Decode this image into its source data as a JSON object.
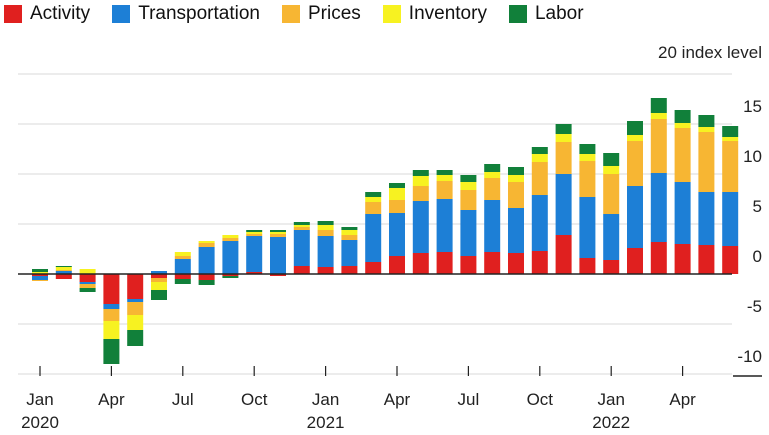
{
  "chart_data": {
    "type": "bar",
    "stacked": true,
    "unit_label": "20 index level",
    "ylim": [
      -10,
      20
    ],
    "y_ticks": [
      15,
      10,
      5,
      0,
      -5,
      -10
    ],
    "grid": true,
    "legend_position": "top-left",
    "x_tick_labels": [
      {
        "index": 0,
        "month": "Jan",
        "year": "2020"
      },
      {
        "index": 3,
        "month": "Apr",
        "year": ""
      },
      {
        "index": 6,
        "month": "Jul",
        "year": ""
      },
      {
        "index": 9,
        "month": "Oct",
        "year": ""
      },
      {
        "index": 12,
        "month": "Jan",
        "year": "2021"
      },
      {
        "index": 15,
        "month": "Apr",
        "year": ""
      },
      {
        "index": 18,
        "month": "Jul",
        "year": ""
      },
      {
        "index": 21,
        "month": "Oct",
        "year": ""
      },
      {
        "index": 24,
        "month": "Jan",
        "year": "2022"
      },
      {
        "index": 27,
        "month": "Apr",
        "year": ""
      }
    ],
    "series": [
      {
        "name": "Activity",
        "color": "#e0201f",
        "values": [
          -0.2,
          -0.5,
          -0.8,
          -3.0,
          -2.5,
          -0.4,
          -0.5,
          -0.6,
          -0.2,
          0.2,
          -0.2,
          0.8,
          0.7,
          0.8,
          1.2,
          1.8,
          2.1,
          2.2,
          1.8,
          2.2,
          2.1,
          2.3,
          3.9,
          1.6,
          1.4,
          2.6,
          3.2,
          3.0,
          2.9,
          2.8
        ]
      },
      {
        "name": "Transportation",
        "color": "#1d7fd6",
        "values": [
          -0.4,
          0.3,
          -0.2,
          -0.5,
          -0.3,
          0.3,
          1.5,
          2.7,
          3.3,
          3.6,
          3.7,
          3.6,
          3.1,
          2.6,
          4.8,
          4.3,
          5.2,
          5.3,
          4.6,
          5.2,
          4.5,
          5.6,
          6.1,
          6.1,
          4.6,
          6.2,
          6.9,
          6.2,
          5.3,
          5.4
        ]
      },
      {
        "name": "Prices",
        "color": "#f7b633",
        "values": [
          -0.1,
          0.1,
          -0.4,
          -1.2,
          -1.3,
          -0.4,
          0.3,
          0.4,
          0.3,
          0.2,
          0.3,
          0.3,
          0.6,
          0.5,
          1.2,
          1.3,
          1.5,
          1.8,
          2.0,
          2.2,
          2.6,
          3.3,
          3.2,
          3.6,
          4.0,
          4.5,
          5.4,
          5.4,
          6.0,
          5.1
        ]
      },
      {
        "name": "Inventory",
        "color": "#f7f221",
        "values": [
          0.2,
          0.3,
          0.5,
          -1.8,
          -1.5,
          -0.8,
          0.4,
          0.2,
          0.3,
          0.2,
          0.2,
          0.2,
          0.5,
          0.5,
          0.5,
          1.2,
          1.0,
          0.6,
          0.8,
          0.6,
          0.7,
          0.8,
          0.8,
          0.7,
          0.8,
          0.6,
          0.6,
          0.5,
          0.5,
          0.4
        ]
      },
      {
        "name": "Labor",
        "color": "#11803a",
        "values": [
          0.3,
          0.1,
          -0.4,
          -2.5,
          -1.6,
          -1.0,
          -0.5,
          -0.5,
          -0.2,
          0.2,
          0.2,
          0.3,
          0.4,
          0.3,
          0.5,
          0.5,
          0.6,
          0.5,
          0.7,
          0.8,
          0.8,
          0.7,
          1.0,
          1.0,
          1.3,
          1.4,
          1.5,
          1.3,
          1.2,
          1.1
        ]
      }
    ]
  }
}
